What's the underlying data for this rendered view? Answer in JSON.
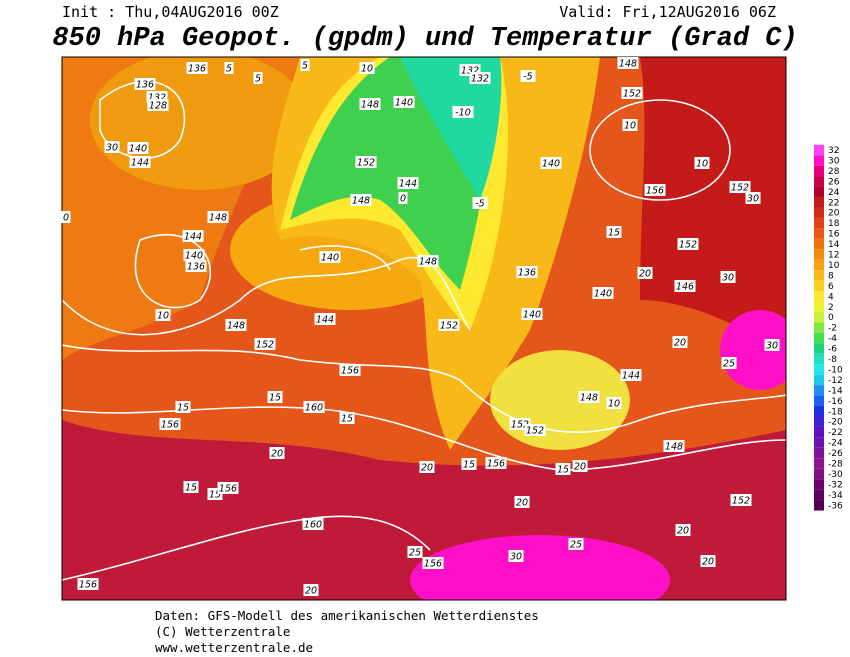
{
  "header": {
    "init": "Init : Thu,04AUG2016 00Z",
    "valid": "Valid: Fri,12AUG2016 06Z",
    "title": "850 hPa Geopot. (gpdm) und Temperatur (Grad C)"
  },
  "colorbar": {
    "levels": [
      32,
      30,
      28,
      26,
      24,
      22,
      20,
      18,
      16,
      14,
      12,
      10,
      8,
      6,
      4,
      2,
      0,
      -2,
      -4,
      -6,
      -8,
      -10,
      -12,
      -14,
      -16,
      -18,
      -20,
      -22,
      -24,
      -26,
      -28,
      -30,
      -32,
      -34,
      -36
    ],
    "colors": [
      "#ff40ff",
      "#ff10c8",
      "#e0007a",
      "#c8004b",
      "#b00030",
      "#c41a1a",
      "#d42a1a",
      "#e0401a",
      "#e85a14",
      "#f07010",
      "#f58a10",
      "#f8a010",
      "#fbb818",
      "#fdd020",
      "#ffe830",
      "#f0f030",
      "#c8f040",
      "#80e840",
      "#40e050",
      "#20d080",
      "#20e0c0",
      "#20e8e8",
      "#20c8f0",
      "#2090f0",
      "#2060f0",
      "#2030e0",
      "#4020d0",
      "#6010c0",
      "#7010b0",
      "#8010a0",
      "#901090",
      "#801080",
      "#700070",
      "#600060",
      "#500050"
    ]
  },
  "map": {
    "contour_labels": [
      "136",
      "136",
      "132",
      "128",
      "140",
      "30",
      "144",
      "5",
      "5",
      "5",
      "10",
      "132",
      "132",
      "-5",
      "148",
      "152",
      "10",
      "10",
      "156",
      "152",
      "30",
      "-10",
      "148",
      "140",
      "152",
      "144",
      "148",
      "0",
      "-5",
      "140",
      "148",
      "144",
      "140",
      "136",
      "10",
      "148",
      "152",
      "144",
      "140",
      "148",
      "152",
      "136",
      "140",
      "140",
      "152",
      "20",
      "146",
      "30",
      "20",
      "30",
      "25",
      "144",
      "148",
      "10",
      "15",
      "156",
      "15",
      "160",
      "15",
      "156",
      "20",
      "20",
      "15",
      "156",
      "152",
      "152",
      "20",
      "15",
      "148",
      "20",
      "152",
      "20",
      "15",
      "15",
      "156",
      "160",
      "25",
      "156",
      "30",
      "25",
      "20",
      "156",
      "20",
      "0",
      "15"
    ]
  },
  "footer": {
    "line1": "Daten: GFS-Modell des amerikanischen Wetterdienstes",
    "line2": "(C) Wetterzentrale",
    "line3": "www.wetterzentrale.de"
  }
}
